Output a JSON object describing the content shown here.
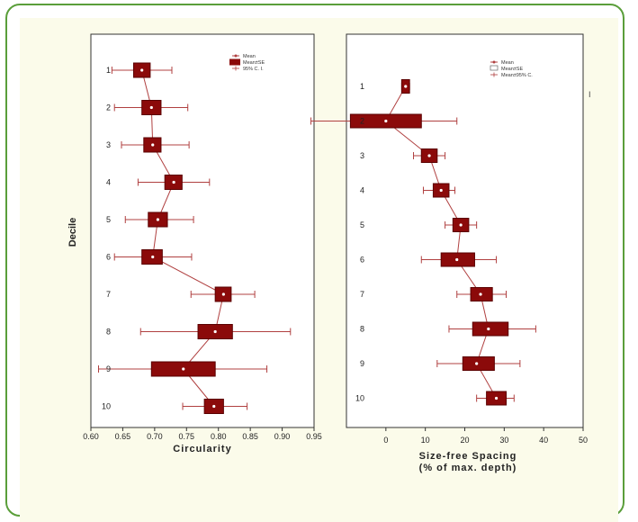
{
  "colors": {
    "box_fill": "#8b0a0a",
    "box_stroke": "#5a0000",
    "whisker": "#b04040",
    "mean_line": "#b04040",
    "frame_border": "#5a9e3a",
    "panel_bg": "#fbfbea"
  },
  "chart_data": [
    {
      "type": "box",
      "orientation": "horizontal",
      "title": "",
      "xlabel": "Circularity",
      "ylabel": "Decile",
      "xlim": [
        0.6,
        0.95
      ],
      "x_ticks": [
        "0.60",
        "0.65",
        "0.70",
        "0.75",
        "0.80",
        "0.85",
        "0.90",
        "0.95"
      ],
      "categories": [
        "1",
        "2",
        "3",
        "4",
        "5",
        "6",
        "7",
        "8",
        "9",
        "10"
      ],
      "legend": {
        "placement": "top-right",
        "entries": [
          "Mean",
          "Mean±SE",
          "95% C. I."
        ]
      },
      "series": [
        {
          "mean": [
            0.68,
            0.695,
            0.697,
            0.73,
            0.705,
            0.697,
            0.808,
            0.795,
            0.745,
            0.793
          ],
          "se_low": [
            0.667,
            0.68,
            0.683,
            0.716,
            0.69,
            0.68,
            0.795,
            0.768,
            0.695,
            0.778
          ],
          "se_high": [
            0.693,
            0.71,
            0.71,
            0.743,
            0.72,
            0.712,
            0.82,
            0.822,
            0.795,
            0.808
          ],
          "ci_low": [
            0.633,
            0.637,
            0.648,
            0.674,
            0.654,
            0.637,
            0.757,
            0.678,
            0.612,
            0.744
          ],
          "ci_high": [
            0.727,
            0.752,
            0.754,
            0.786,
            0.761,
            0.758,
            0.857,
            0.913,
            0.876,
            0.845
          ]
        }
      ]
    },
    {
      "type": "box",
      "orientation": "vertical-categories",
      "title": "",
      "xlabel": "Size-free Spacing (% of max. depth)",
      "ylabel": "",
      "xlim": [
        -10,
        50
      ],
      "x_ticks": [
        "0",
        "10",
        "20",
        "30",
        "40",
        "50"
      ],
      "categories": [
        "1",
        "2",
        "3",
        "4",
        "5",
        "6",
        "7",
        "8",
        "9",
        "10"
      ],
      "legend": {
        "placement": "top-right",
        "entries": [
          "Mean",
          "Mean±SE",
          "Mean±95% C."
        ]
      },
      "series": [
        {
          "mean": [
            5.0,
            0.0,
            11.0,
            14.0,
            19.0,
            18.0,
            24.0,
            26.0,
            23.0,
            28.0
          ],
          "se_low": [
            4.0,
            -9.0,
            9.0,
            12.0,
            17.0,
            14.0,
            21.5,
            22.0,
            19.5,
            25.5
          ],
          "se_high": [
            6.0,
            9.0,
            13.0,
            16.0,
            21.0,
            22.5,
            27.0,
            31.0,
            27.5,
            30.5
          ],
          "ci_low": [
            4.0,
            -19.0,
            7.0,
            9.5,
            15.0,
            9.0,
            18.0,
            16.0,
            13.0,
            23.0
          ],
          "ci_high": [
            6.0,
            18.0,
            15.0,
            17.5,
            23.0,
            28.0,
            30.5,
            38.0,
            34.0,
            32.5
          ]
        }
      ],
      "side_mark": "I"
    }
  ]
}
